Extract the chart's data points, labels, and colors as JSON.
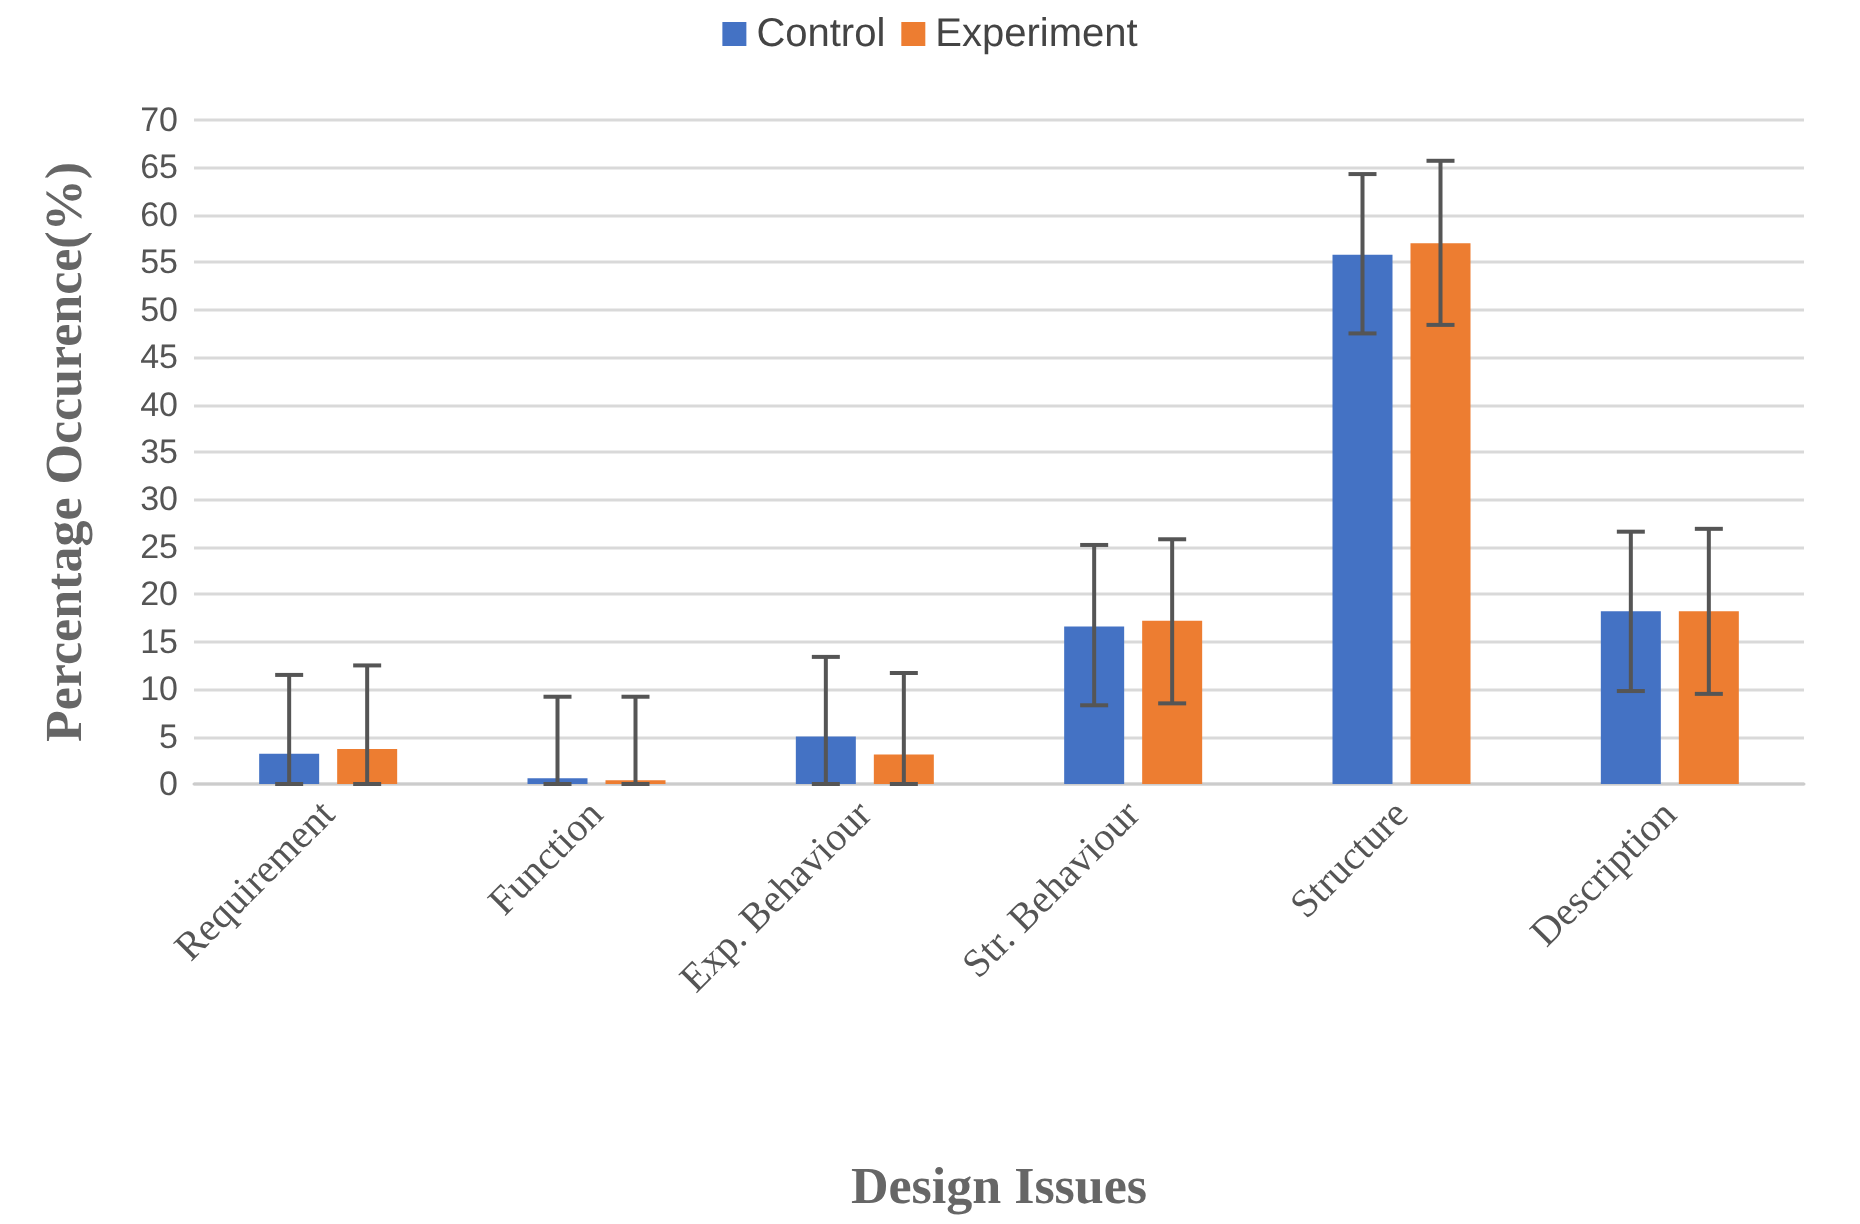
{
  "chart_data": {
    "type": "bar",
    "xlabel": "Design Issues",
    "ylabel": "Percentage Occurence(%)",
    "categories": [
      "Requirement",
      "Function",
      "Exp. Behaviour",
      "Str. Behaviour",
      "Structure",
      "Description"
    ],
    "series": [
      {
        "name": "Control",
        "color": "#4472c4",
        "values": [
          3.2,
          0.6,
          5.0,
          16.6,
          55.8,
          18.2
        ],
        "errors": [
          [
            0,
            11.5
          ],
          [
            0,
            9.2
          ],
          [
            0,
            13.4
          ],
          [
            8.3,
            25.2
          ],
          [
            47.5,
            64.3
          ],
          [
            9.8,
            26.6
          ]
        ]
      },
      {
        "name": "Experiment",
        "color": "#ed7d31",
        "values": [
          3.7,
          0.4,
          3.1,
          17.2,
          57.0,
          18.2
        ],
        "errors": [
          [
            0,
            12.5
          ],
          [
            0,
            9.2
          ],
          [
            0,
            11.7
          ],
          [
            8.5,
            25.8
          ],
          [
            48.4,
            65.7
          ],
          [
            9.5,
            26.9
          ]
        ]
      }
    ],
    "ylim": [
      0,
      70
    ],
    "yticks": [
      0,
      5,
      10,
      15,
      20,
      25,
      30,
      35,
      40,
      45,
      50,
      55,
      60,
      65,
      70
    ],
    "grid": "y",
    "legend": "top"
  }
}
